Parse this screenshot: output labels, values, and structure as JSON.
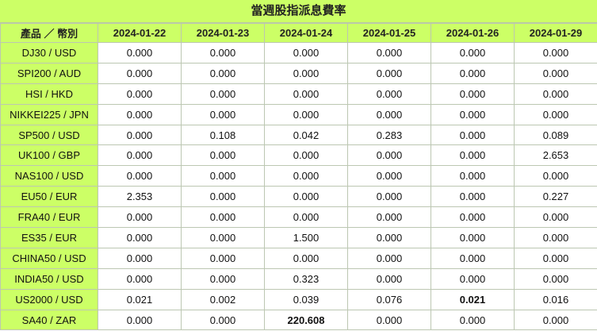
{
  "title": "當週股指派息費率",
  "header": {
    "product_label": "產品 ／ 幣別",
    "dates": [
      "2024-01-22",
      "2024-01-23",
      "2024-01-24",
      "2024-01-25",
      "2024-01-26",
      "2024-01-29"
    ]
  },
  "rows": [
    {
      "product": "DJ30 / USD",
      "values": [
        "0.000",
        "0.000",
        "0.000",
        "0.000",
        "0.000",
        "0.000"
      ]
    },
    {
      "product": "SPI200 / AUD",
      "values": [
        "0.000",
        "0.000",
        "0.000",
        "0.000",
        "0.000",
        "0.000"
      ]
    },
    {
      "product": "HSI / HKD",
      "values": [
        "0.000",
        "0.000",
        "0.000",
        "0.000",
        "0.000",
        "0.000"
      ]
    },
    {
      "product": "NIKKEI225 / JPN",
      "values": [
        "0.000",
        "0.000",
        "0.000",
        "0.000",
        "0.000",
        "0.000"
      ]
    },
    {
      "product": "SP500 / USD",
      "values": [
        "0.000",
        "0.108",
        "0.042",
        "0.283",
        "0.000",
        "0.089"
      ]
    },
    {
      "product": "UK100 / GBP",
      "values": [
        "0.000",
        "0.000",
        "0.000",
        "0.000",
        "0.000",
        "2.653"
      ]
    },
    {
      "product": "NAS100 / USD",
      "values": [
        "0.000",
        "0.000",
        "0.000",
        "0.000",
        "0.000",
        "0.000"
      ]
    },
    {
      "product": "EU50 / EUR",
      "values": [
        "2.353",
        "0.000",
        "0.000",
        "0.000",
        "0.000",
        "0.227"
      ]
    },
    {
      "product": "FRA40 / EUR",
      "values": [
        "0.000",
        "0.000",
        "0.000",
        "0.000",
        "0.000",
        "0.000"
      ]
    },
    {
      "product": "ES35 / EUR",
      "values": [
        "0.000",
        "0.000",
        "1.500",
        "0.000",
        "0.000",
        "0.000"
      ]
    },
    {
      "product": "CHINA50 / USD",
      "values": [
        "0.000",
        "0.000",
        "0.000",
        "0.000",
        "0.000",
        "0.000"
      ]
    },
    {
      "product": "INDIA50 / USD",
      "values": [
        "0.000",
        "0.000",
        "0.323",
        "0.000",
        "0.000",
        "0.000"
      ]
    },
    {
      "product": "US2000 / USD",
      "values": [
        "0.021",
        "0.002",
        "0.039",
        "0.076",
        "0.021",
        "0.016"
      ],
      "bold": [
        4
      ]
    },
    {
      "product": "SA40 / ZAR",
      "values": [
        "0.000",
        "0.000",
        "220.608",
        "0.000",
        "0.000",
        "0.000"
      ],
      "bold": [
        2
      ]
    }
  ]
}
